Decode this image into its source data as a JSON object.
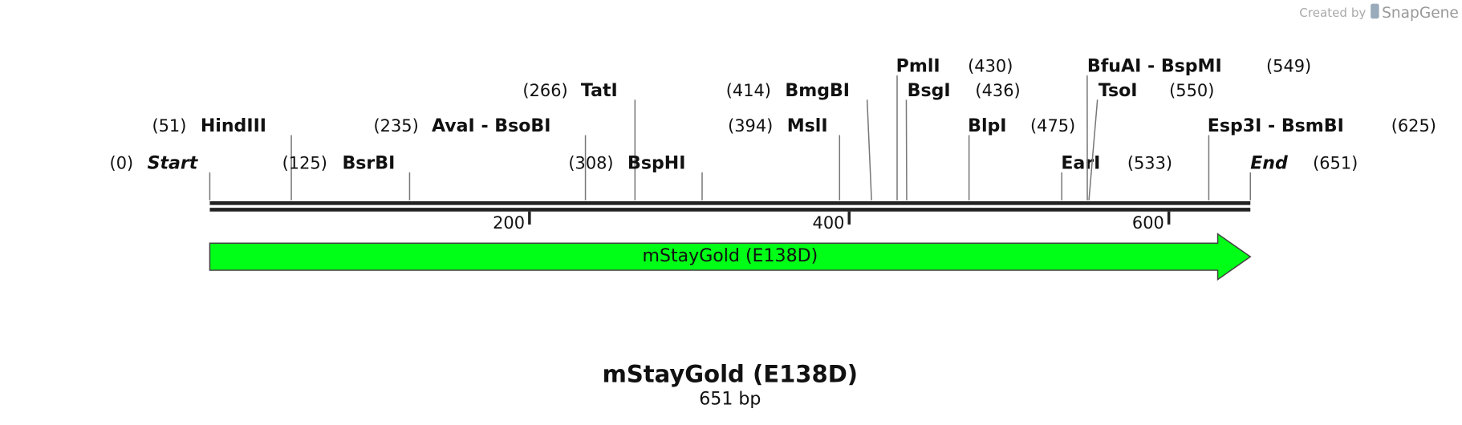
{
  "header": {
    "credit": "Created by",
    "brand": "SnapGene"
  },
  "sites": [
    {
      "name": "Start",
      "position": 0,
      "label": "(0)"
    },
    {
      "name": "HindIII",
      "position": 51,
      "label": "(51)"
    },
    {
      "name": "BsrBI",
      "position": 125,
      "label": "(125)"
    },
    {
      "name": "AvaI  -  BsoBI",
      "position": 235,
      "label": "(235)"
    },
    {
      "name": "TatI",
      "position": 266,
      "label": "(266)"
    },
    {
      "name": "BspHI",
      "position": 308,
      "label": "(308)"
    },
    {
      "name": "BmgBI",
      "position": 414,
      "label": "(414)"
    },
    {
      "name": "MslI",
      "position": 394,
      "label": "(394)"
    },
    {
      "name": "PmlI",
      "position": 430,
      "label": "(430)"
    },
    {
      "name": "BsgI",
      "position": 436,
      "label": "(436)"
    },
    {
      "name": "BlpI",
      "position": 475,
      "label": "(475)"
    },
    {
      "name": "EarI",
      "position": 533,
      "label": "(533)"
    },
    {
      "name": "BfuAI  -  BspMI",
      "position": 549,
      "label": "(549)"
    },
    {
      "name": "TsoI",
      "position": 550,
      "label": "(550)"
    },
    {
      "name": "Esp3I  -  BsmBI",
      "position": 625,
      "label": "(625)"
    },
    {
      "name": "End",
      "position": 651,
      "label": "(651)"
    }
  ],
  "ruler_ticks": [
    200,
    400,
    600
  ],
  "feature": {
    "name": "mStayGold (E138D)",
    "color": "#00ff16"
  },
  "footer": {
    "title": "mStayGold (E138D)",
    "length": "651 bp"
  }
}
